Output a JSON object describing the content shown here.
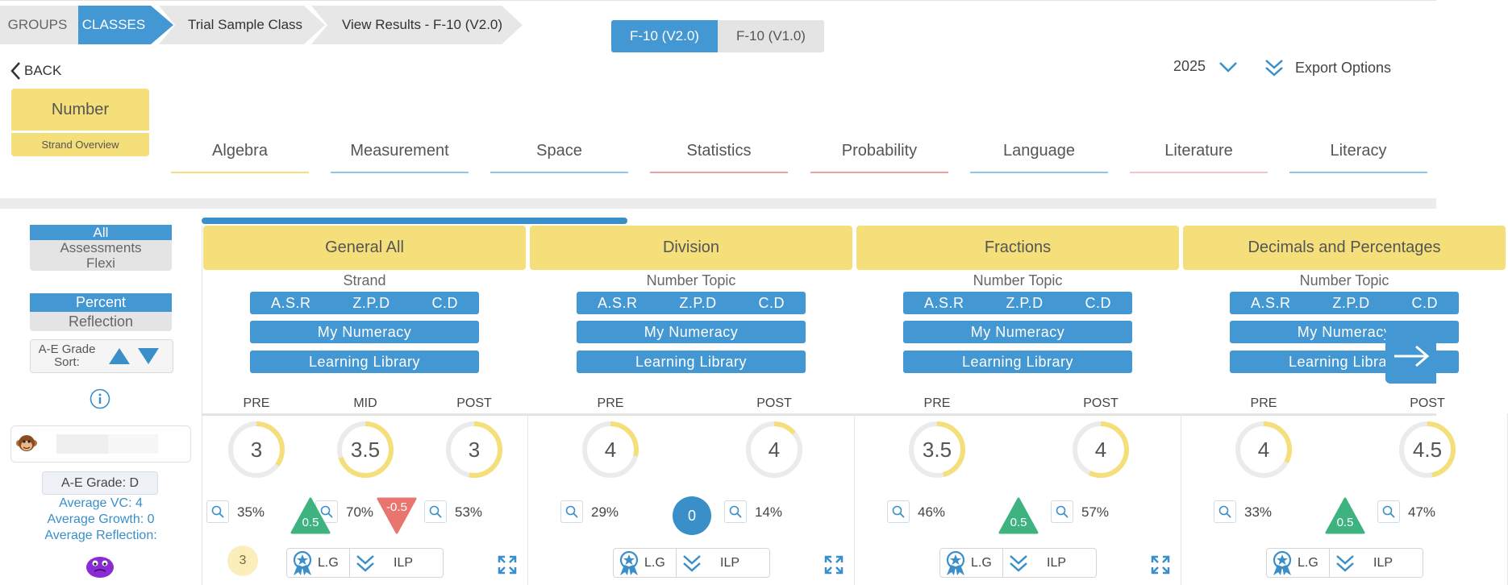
{
  "breadcrumb": {
    "groups": "GROUPS",
    "classes": "CLASSES",
    "class_name": "Trial Sample Class",
    "view": "View Results - F-10 (V2.0)"
  },
  "version_toggle": {
    "active": "F-10 (V2.0)",
    "inactive": "F-10 (V1.0)"
  },
  "back_label": "BACK",
  "year": "2025",
  "export_label": "Export Options",
  "strand": {
    "title": "Number",
    "subtitle": "Strand Overview"
  },
  "strand_tabs": [
    {
      "label": "Algebra",
      "color": "#f5df7a"
    },
    {
      "label": "Measurement",
      "color": "#8cc6e8"
    },
    {
      "label": "Space",
      "color": "#8cc6e8"
    },
    {
      "label": "Statistics",
      "color": "#f0a0a0"
    },
    {
      "label": "Probability",
      "color": "#f0a0a0"
    },
    {
      "label": "Language",
      "color": "#8cc6e8"
    },
    {
      "label": "Literature",
      "color": "#f5c6c6"
    },
    {
      "label": "Literacy",
      "color": "#8cc6e8"
    }
  ],
  "filters": {
    "view": [
      "All",
      "Assessments",
      "Flexi"
    ],
    "mode": [
      "Percent",
      "Reflection"
    ],
    "sort_label": "A-E Grade Sort:"
  },
  "student": {
    "grade": "A-E Grade: D",
    "average_vc": "Average VC: 4",
    "average_growth": "Average Growth: 0",
    "average_reflection": "Average Reflection:",
    "reflection_count": "3"
  },
  "pills": {
    "codes": [
      "A.S.R",
      "Z.P.D",
      "C.D"
    ],
    "my_numeracy": "My Numeracy",
    "learning_library": "Learning Library"
  },
  "lg_label": "L.G",
  "ilp_label": "ILP",
  "topics": [
    {
      "name": "General All",
      "type": "Strand",
      "phases": [
        {
          "label": "PRE",
          "value": "3",
          "fraction": 0.35,
          "percent": "35%"
        },
        {
          "label": "MID",
          "value": "3.5",
          "fraction": 0.7,
          "percent": "70%"
        },
        {
          "label": "POST",
          "value": "3",
          "fraction": 0.53,
          "percent": "53%"
        }
      ],
      "growth": [
        {
          "value": "0.5",
          "dir": "up"
        },
        {
          "value": "-0.5",
          "dir": "down"
        }
      ]
    },
    {
      "name": "Division",
      "type": "Number Topic",
      "phases": [
        {
          "label": "PRE",
          "value": "4",
          "fraction": 0.29,
          "percent": "29%"
        },
        {
          "label": "POST",
          "value": "4",
          "fraction": 0.14,
          "percent": "14%"
        }
      ],
      "growth": [
        {
          "value": "0",
          "dir": "neutral"
        }
      ]
    },
    {
      "name": "Fractions",
      "type": "Number Topic",
      "phases": [
        {
          "label": "PRE",
          "value": "3.5",
          "fraction": 0.46,
          "percent": "46%"
        },
        {
          "label": "POST",
          "value": "4",
          "fraction": 0.57,
          "percent": "57%"
        }
      ],
      "growth": [
        {
          "value": "0.5",
          "dir": "up"
        }
      ]
    },
    {
      "name": "Decimals and Percentages",
      "type": "Number Topic",
      "phases": [
        {
          "label": "PRE",
          "value": "4",
          "fraction": 0.33,
          "percent": "33%"
        },
        {
          "label": "POST",
          "value": "4.5",
          "fraction": 0.47,
          "percent": "47%"
        }
      ],
      "growth": [
        {
          "value": "0.5",
          "dir": "up"
        }
      ]
    }
  ],
  "colors": {
    "accent": "#4397d2",
    "strand_yellow": "#f5df7a",
    "up": "#3fb37f",
    "down": "#e8766f"
  }
}
